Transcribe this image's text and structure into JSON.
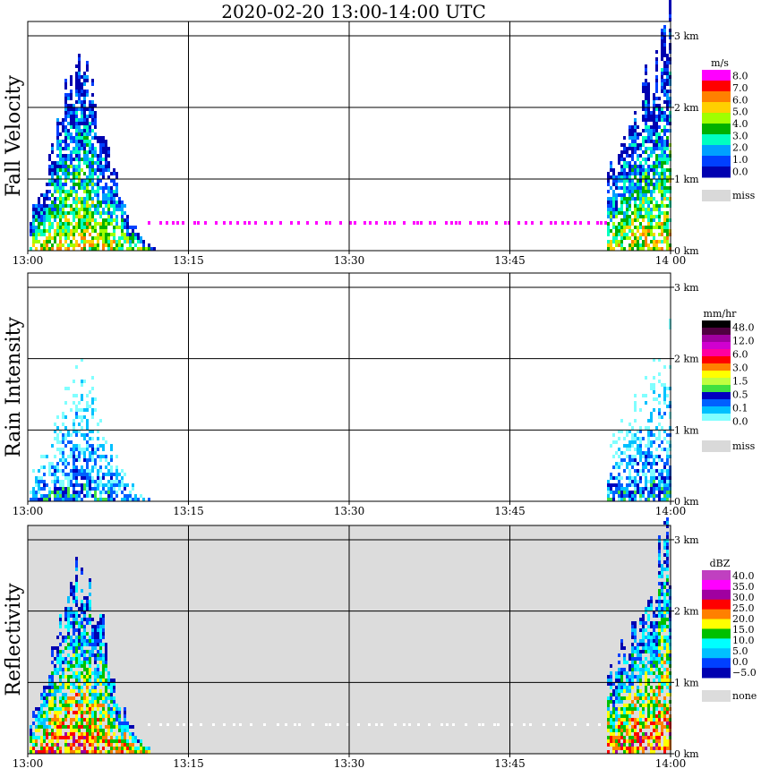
{
  "title": "2020-02-20  13:00-14:00 UTC",
  "x_ticks": [
    "13:00",
    "13:15",
    "13:30",
    "13:45",
    "14:00"
  ],
  "y_ticks": [
    "0 km",
    "1 km",
    "2 km",
    "3 km"
  ],
  "chart_data": [
    {
      "type": "heatmap",
      "ylabel": "Fall Velocity",
      "xlim": [
        "13:00",
        "14:00"
      ],
      "ylim": [
        0,
        3.2
      ],
      "background": "#ffffff",
      "legend": {
        "unit": "m/s",
        "labels": [
          "8.0",
          "7.0",
          "6.0",
          "5.0",
          "4.0",
          "3.0",
          "2.0",
          "1.0",
          "0.0"
        ],
        "colors": [
          "#ff00ff",
          "#ff0000",
          "#ff8000",
          "#ffd000",
          "#a0ff00",
          "#00b000",
          "#00ffc0",
          "#00a0ff",
          "#0040ff",
          "#0000b0"
        ],
        "miss_label": "miss",
        "miss_color": "#d9d9d9"
      }
    },
    {
      "type": "heatmap",
      "ylabel": "Rain Intensity",
      "xlim": [
        "13:00",
        "14:00"
      ],
      "ylim": [
        0,
        3.2
      ],
      "background": "#ffffff",
      "legend": {
        "unit": "mm/hr",
        "labels": [
          "48.0",
          "12.0",
          "6.0",
          "3.0",
          "1.5",
          "0.5",
          "0.1",
          "0.0"
        ],
        "colors": [
          "#000000",
          "#500040",
          "#a000a0",
          "#d000d0",
          "#ff00a0",
          "#ff0000",
          "#ff8000",
          "#ffff00",
          "#c0ff40",
          "#40e040",
          "#0000c0",
          "#0060ff",
          "#00c0ff",
          "#80ffff",
          "#ffffff"
        ],
        "miss_label": "miss",
        "miss_color": "#d9d9d9"
      }
    },
    {
      "type": "heatmap",
      "ylabel": "Reflectivity",
      "xlim": [
        "13:00",
        "14:00"
      ],
      "ylim": [
        0,
        3.2
      ],
      "background": "#dcdcdc",
      "legend": {
        "unit": "dBZ",
        "labels": [
          "40.0",
          "35.0",
          "30.0",
          "25.0",
          "20.0",
          "15.0",
          "10.0",
          "5.0",
          "0.0",
          "−5.0"
        ],
        "colors": [
          "#c040c0",
          "#ff00ff",
          "#a000a0",
          "#ff0000",
          "#ff8000",
          "#ffff00",
          "#00c000",
          "#00ffff",
          "#00c0ff",
          "#0040ff",
          "#0000b0"
        ],
        "miss_label": "none",
        "miss_color": "#dcdcdc"
      }
    }
  ]
}
